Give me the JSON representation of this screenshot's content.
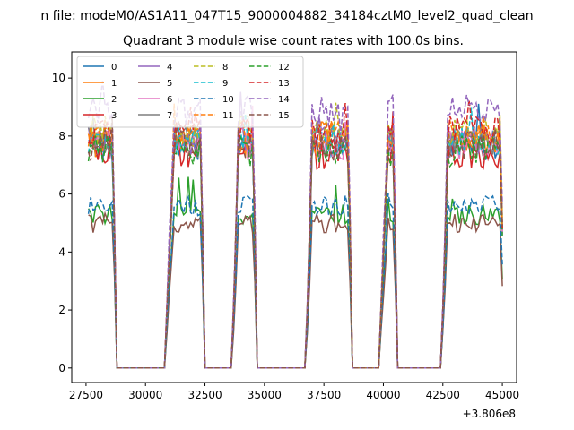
{
  "chart_data": {
    "type": "line",
    "suptitle": "n file: modeM0/AS1A11_047T15_9000004882_34184cztM0_level2_quad_clean",
    "title": "Quadrant 3 module wise count rates with 100.0s bins.",
    "xlabel": "",
    "ylabel": "",
    "x_offset_label": "+3.806e8",
    "xlim": [
      26900,
      45600
    ],
    "ylim": [
      -0.5,
      10.9
    ],
    "xticks": [
      27500,
      30000,
      32500,
      35000,
      37500,
      40000,
      42500,
      45000
    ],
    "xtick_labels": [
      "27500",
      "30000",
      "32500",
      "35000",
      "37500",
      "40000",
      "42500",
      "45000"
    ],
    "yticks": [
      0,
      2,
      4,
      6,
      8,
      10
    ],
    "ytick_labels": [
      "0",
      "2",
      "4",
      "6",
      "8",
      "10"
    ],
    "grid": false,
    "legend_placement": "top-left",
    "legend_columns": 4,
    "bin_size_s": 100,
    "segments": [
      {
        "start": 27600,
        "end": 28700,
        "rise_end": null,
        "fall_start": 28700
      },
      {
        "start": 30900,
        "end": 32400,
        "rise_end": 31200,
        "fall_start": 32400
      },
      {
        "start": 33700,
        "end": 34600,
        "rise_end": 33900,
        "fall_start": 34600
      },
      {
        "start": 36800,
        "end": 38600,
        "rise_end": 37000,
        "fall_start": 38600
      },
      {
        "start": 39900,
        "end": 40500,
        "rise_end": 40200,
        "fall_start": 40500
      },
      {
        "start": 42500,
        "end": 45000,
        "rise_end": 42700,
        "fall_start": 45000
      }
    ],
    "gap_level": 0,
    "series": [
      {
        "name": "0",
        "color": "#1f77b4",
        "dash": "solid",
        "level": 7.6
      },
      {
        "name": "1",
        "color": "#ff7f0e",
        "dash": "solid",
        "level": 7.8
      },
      {
        "name": "2",
        "color": "#2ca02c",
        "dash": "solid",
        "level": 5.3
      },
      {
        "name": "3",
        "color": "#d62728",
        "dash": "solid",
        "level": 7.4
      },
      {
        "name": "4",
        "color": "#9467bd",
        "dash": "solid",
        "level": 7.9
      },
      {
        "name": "5",
        "color": "#8c564b",
        "dash": "solid",
        "level": 5.0
      },
      {
        "name": "6",
        "color": "#e377c2",
        "dash": "solid",
        "level": 7.7
      },
      {
        "name": "7",
        "color": "#7f7f7f",
        "dash": "solid",
        "level": 7.8
      },
      {
        "name": "8",
        "color": "#bcbd22",
        "dash": "dashed",
        "level": 8.2
      },
      {
        "name": "9",
        "color": "#17becf",
        "dash": "dashed",
        "level": 7.9
      },
      {
        "name": "10",
        "color": "#1f77b4",
        "dash": "dashed",
        "level": 5.6
      },
      {
        "name": "11",
        "color": "#ff7f0e",
        "dash": "dashed",
        "level": 8.0
      },
      {
        "name": "12",
        "color": "#2ca02c",
        "dash": "dashed",
        "level": 7.5
      },
      {
        "name": "13",
        "color": "#d62728",
        "dash": "dashed",
        "level": 8.1
      },
      {
        "name": "14",
        "color": "#9467bd",
        "dash": "dashed",
        "level": 8.9
      },
      {
        "name": "15",
        "color": "#8c564b",
        "dash": "dashed",
        "level": 7.7
      }
    ]
  }
}
